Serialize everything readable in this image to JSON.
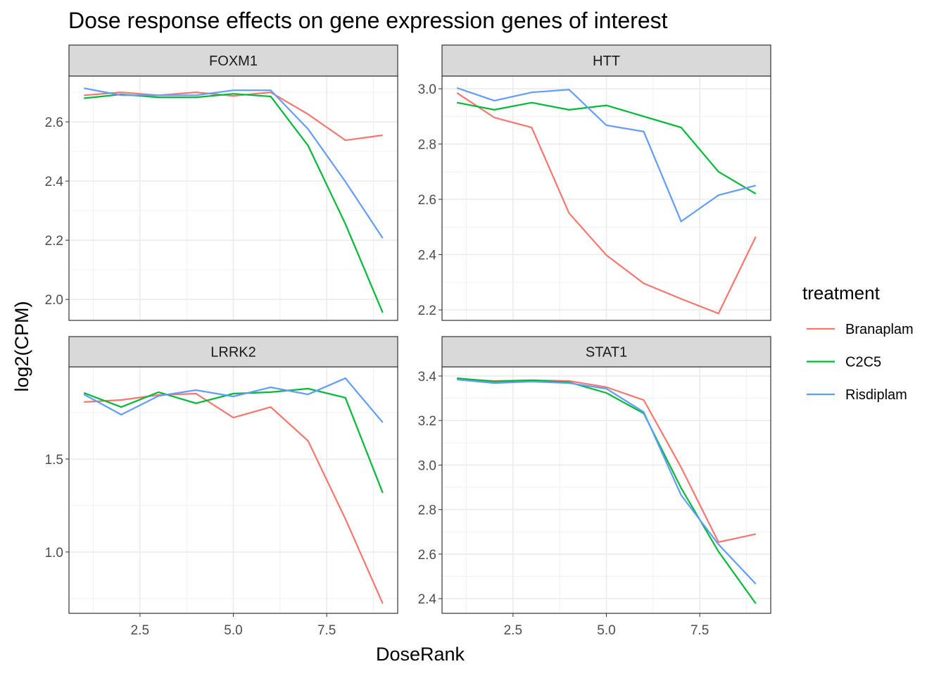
{
  "chart_data": {
    "type": "line",
    "title": "Dose response effects on gene expression genes of interest",
    "xlabel": "DoseRank",
    "ylabel": "log2(CPM)",
    "legend": {
      "title": "treatment",
      "placement": "right"
    },
    "colors": {
      "Branaplam": "#F8766D",
      "C2C5": "#00BA38",
      "Risdiplam": "#619CFF"
    },
    "x": [
      1,
      2,
      3,
      4,
      5,
      6,
      7,
      8,
      9
    ],
    "xlim": [
      0.6,
      9.4
    ],
    "xticks": [
      2.5,
      5.0,
      7.5
    ],
    "xtick_labels": [
      "2.5",
      "5.0",
      "7.5"
    ],
    "grid": true,
    "facets": [
      {
        "name": "FOXM1",
        "ylim": [
          1.929,
          2.755
        ],
        "yticks": [
          2.0,
          2.2,
          2.4,
          2.6
        ],
        "ytick_labels": [
          "2.0",
          "2.2",
          "2.4",
          "2.6"
        ],
        "series": [
          {
            "name": "Branaplam",
            "values": [
              2.69,
              2.7,
              2.69,
              2.7,
              2.688,
              2.7,
              2.626,
              2.538,
              2.555
            ]
          },
          {
            "name": "C2C5",
            "values": [
              2.68,
              2.693,
              2.683,
              2.683,
              2.695,
              2.686,
              2.52,
              2.255,
              1.955
            ]
          },
          {
            "name": "Risdiplam",
            "values": [
              2.714,
              2.69,
              2.69,
              2.69,
              2.707,
              2.707,
              2.576,
              2.398,
              2.207
            ]
          }
        ]
      },
      {
        "name": "HTT",
        "ylim": [
          2.162,
          3.046
        ],
        "yticks": [
          2.2,
          2.4,
          2.6,
          2.8,
          3.0
        ],
        "ytick_labels": [
          "2.2",
          "2.4",
          "2.6",
          "2.8",
          "3.0"
        ],
        "series": [
          {
            "name": "Branaplam",
            "values": [
              2.985,
              2.896,
              2.86,
              2.55,
              2.398,
              2.296,
              2.24,
              2.187,
              2.465
            ]
          },
          {
            "name": "C2C5",
            "values": [
              2.95,
              2.924,
              2.95,
              2.924,
              2.94,
              2.9,
              2.86,
              2.7,
              2.62
            ]
          },
          {
            "name": "Risdiplam",
            "values": [
              3.003,
              2.957,
              2.987,
              2.997,
              2.868,
              2.845,
              2.52,
              2.615,
              2.65
            ]
          }
        ]
      },
      {
        "name": "LRRK2",
        "ylim": [
          0.67,
          1.996
        ],
        "yticks": [
          1.0,
          1.5
        ],
        "ytick_labels": [
          "1.0",
          "1.5"
        ],
        "series": [
          {
            "name": "Branaplam",
            "values": [
              1.807,
              1.818,
              1.845,
              1.852,
              1.723,
              1.78,
              1.598,
              1.178,
              0.723
            ]
          },
          {
            "name": "C2C5",
            "values": [
              1.856,
              1.78,
              1.86,
              1.8,
              1.852,
              1.86,
              1.879,
              1.83,
              1.318
            ]
          },
          {
            "name": "Risdiplam",
            "values": [
              1.848,
              1.739,
              1.84,
              1.871,
              1.837,
              1.886,
              1.848,
              1.935,
              1.697
            ]
          }
        ]
      },
      {
        "name": "STAT1",
        "ylim": [
          2.334,
          3.441
        ],
        "yticks": [
          2.4,
          2.6,
          2.8,
          3.0,
          3.2,
          3.4
        ],
        "ytick_labels": [
          "2.4",
          "2.6",
          "2.8",
          "3.0",
          "3.2",
          "3.4"
        ],
        "series": [
          {
            "name": "Branaplam",
            "values": [
              3.387,
              3.378,
              3.381,
              3.378,
              3.35,
              3.292,
              2.99,
              2.654,
              2.69
            ]
          },
          {
            "name": "C2C5",
            "values": [
              3.39,
              3.375,
              3.381,
              3.372,
              3.324,
              3.232,
              2.897,
              2.612,
              2.378
            ]
          },
          {
            "name": "Risdiplam",
            "values": [
              3.384,
              3.368,
              3.375,
              3.368,
              3.343,
              3.238,
              2.865,
              2.644,
              2.466
            ]
          }
        ]
      }
    ]
  }
}
